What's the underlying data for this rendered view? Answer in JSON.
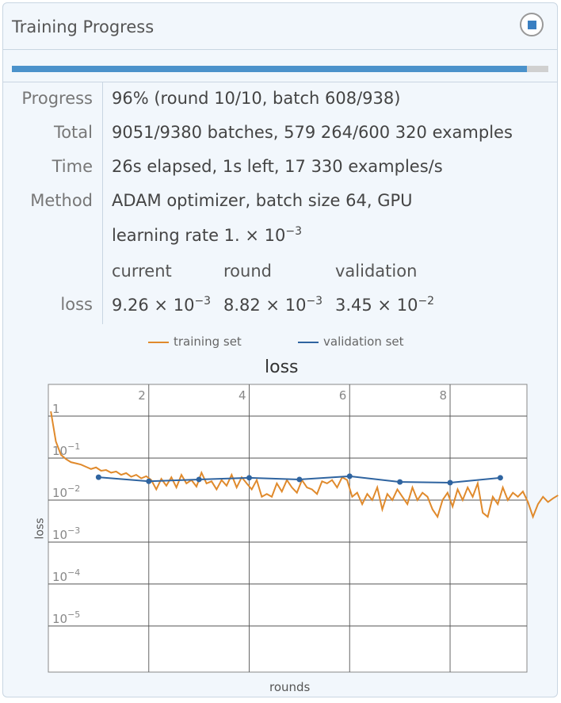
{
  "header": {
    "title": "Training Progress",
    "stop_icon": "stop-icon"
  },
  "progress_fraction": 0.96,
  "rows": [
    {
      "label": "Progress",
      "value": "96% (round 10/10, batch 608/938)"
    },
    {
      "label": "Total",
      "value": "9051/9380 batches, 579 264/600 320 examples"
    },
    {
      "label": "Time",
      "value": "26s elapsed, 1s left, 17 330 examples/s"
    },
    {
      "label": "Method",
      "value": "ADAM optimizer, batch size 64, GPU"
    }
  ],
  "learning_rate": {
    "text": "learning rate 1. × 10",
    "exp": "−3"
  },
  "loss_table": {
    "label": "loss",
    "headers": [
      "current",
      "round",
      "validation"
    ],
    "values": [
      {
        "mant": "9.26 × 10",
        "exp": "−3"
      },
      {
        "mant": "8.82 × 10",
        "exp": "−3"
      },
      {
        "mant": "3.45 × 10",
        "exp": "−2"
      }
    ]
  },
  "chart_data": {
    "type": "line",
    "title": "loss",
    "xlabel": "rounds",
    "ylabel": "loss",
    "yscale": "log",
    "xlim": [
      0,
      9.53
    ],
    "ylim": [
      8e-07,
      5.7
    ],
    "xticks": [
      2,
      4,
      6,
      8
    ],
    "yticks": [
      {
        "v": 1,
        "base": "1",
        "exp": ""
      },
      {
        "v": 0.1,
        "base": "10",
        "exp": "−1"
      },
      {
        "v": 0.01,
        "base": "10",
        "exp": "−2"
      },
      {
        "v": 0.001,
        "base": "10",
        "exp": "−3"
      },
      {
        "v": 0.0001,
        "base": "10",
        "exp": "−4"
      },
      {
        "v": 1e-05,
        "base": "10",
        "exp": "−5"
      }
    ],
    "grid": true,
    "legend": "top",
    "series": [
      {
        "name": "training set",
        "color": "#e08a2c",
        "x_step": 0.1,
        "x_start": 0.05,
        "values": [
          1.3,
          0.25,
          0.12,
          0.095,
          0.08,
          0.075,
          0.07,
          0.062,
          0.055,
          0.06,
          0.05,
          0.052,
          0.045,
          0.048,
          0.04,
          0.044,
          0.036,
          0.04,
          0.033,
          0.037,
          0.03,
          0.018,
          0.032,
          0.022,
          0.035,
          0.02,
          0.04,
          0.025,
          0.03,
          0.021,
          0.045,
          0.025,
          0.028,
          0.018,
          0.03,
          0.022,
          0.04,
          0.02,
          0.035,
          0.025,
          0.018,
          0.03,
          0.012,
          0.014,
          0.012,
          0.025,
          0.016,
          0.03,
          0.02,
          0.015,
          0.03,
          0.02,
          0.018,
          0.014,
          0.028,
          0.025,
          0.03,
          0.02,
          0.035,
          0.03,
          0.012,
          0.015,
          0.008,
          0.014,
          0.01,
          0.02,
          0.006,
          0.014,
          0.01,
          0.018,
          0.012,
          0.008,
          0.02,
          0.01,
          0.015,
          0.012,
          0.006,
          0.004,
          0.01,
          0.015,
          0.007,
          0.018,
          0.01,
          0.02,
          0.012,
          0.025,
          0.005,
          0.004,
          0.012,
          0.008,
          0.02,
          0.01,
          0.015,
          0.012,
          0.016,
          0.009,
          0.004,
          0.008,
          0.012,
          0.009,
          0.011,
          0.013
        ]
      },
      {
        "name": "validation set",
        "color": "#2f64a0",
        "x": [
          1,
          2,
          3,
          4,
          5,
          6,
          7,
          8,
          9
        ],
        "values": [
          0.035,
          0.028,
          0.031,
          0.034,
          0.031,
          0.037,
          0.027,
          0.026,
          0.034
        ]
      }
    ]
  }
}
